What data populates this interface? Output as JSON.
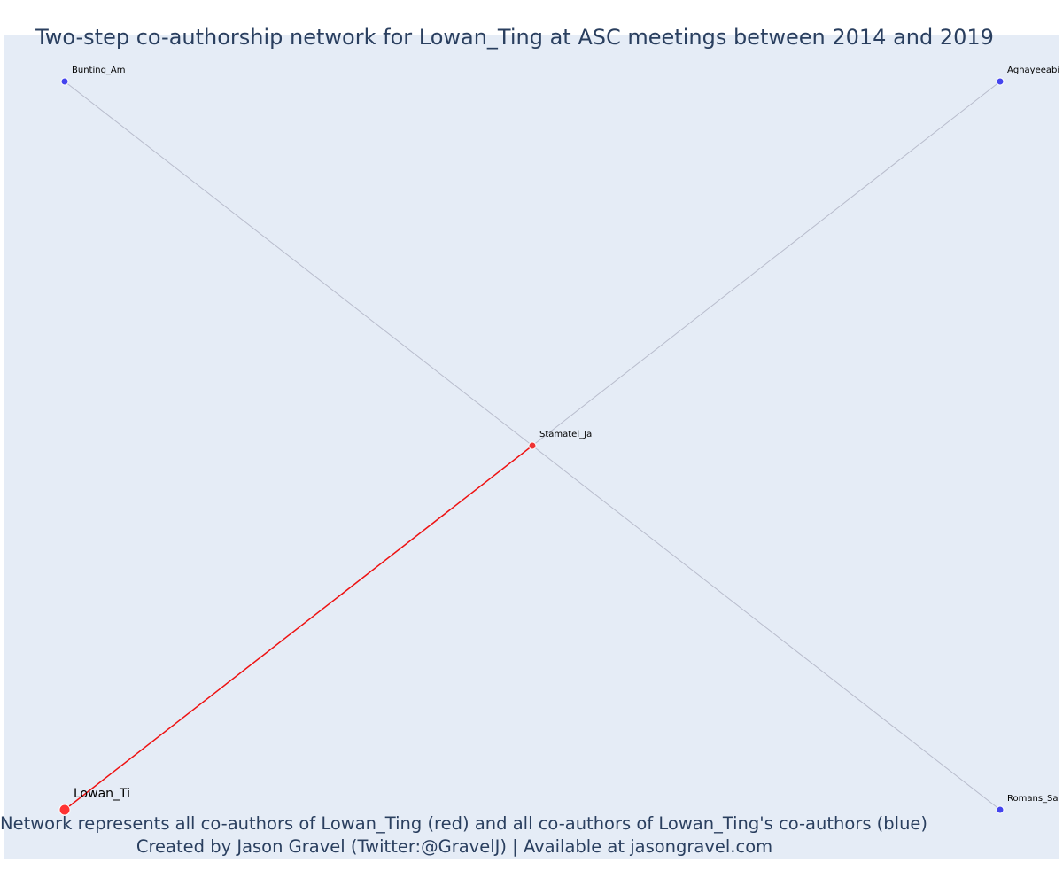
{
  "title": "Two-step co-authorship network for Lowan_Ting at ASC meetings between 2014 and 2019",
  "caption": {
    "line1": "Network represents all co-authors of Lowan_Ting (red) and all co-authors of Lowan_Ting's co-authors (blue)",
    "line2": "Created by Jason Gravel (Twitter:@GravelJ) | Available at jasongravel.com"
  },
  "colors": {
    "background": "#e5ecf6",
    "focal": "#ff3333",
    "first_step": "#ee3333",
    "second_step": "#4444ee",
    "edge_red": "#ee1111",
    "edge_gray": "#b8bccc"
  },
  "network": {
    "nodes": [
      {
        "id": "Lowan_Ti",
        "label": "Lowan_Ti",
        "group": "focal"
      },
      {
        "id": "Stamatel_Ja",
        "label": "Stamatel_Ja",
        "group": "first_step"
      },
      {
        "id": "Bunting_Am",
        "label": "Bunting_Am",
        "group": "second_step"
      },
      {
        "id": "Aghayeeabia",
        "label": "Aghayeeabia",
        "group": "second_step"
      },
      {
        "id": "Romans_Sa",
        "label": "Romans_Sa",
        "group": "second_step"
      }
    ],
    "edges": [
      {
        "source": "Lowan_Ti",
        "target": "Stamatel_Ja",
        "type": "first_step"
      },
      {
        "source": "Stamatel_Ja",
        "target": "Bunting_Am",
        "type": "second_step"
      },
      {
        "source": "Stamatel_Ja",
        "target": "Aghayeeabia",
        "type": "second_step"
      },
      {
        "source": "Stamatel_Ja",
        "target": "Romans_Sa",
        "type": "second_step"
      }
    ]
  }
}
